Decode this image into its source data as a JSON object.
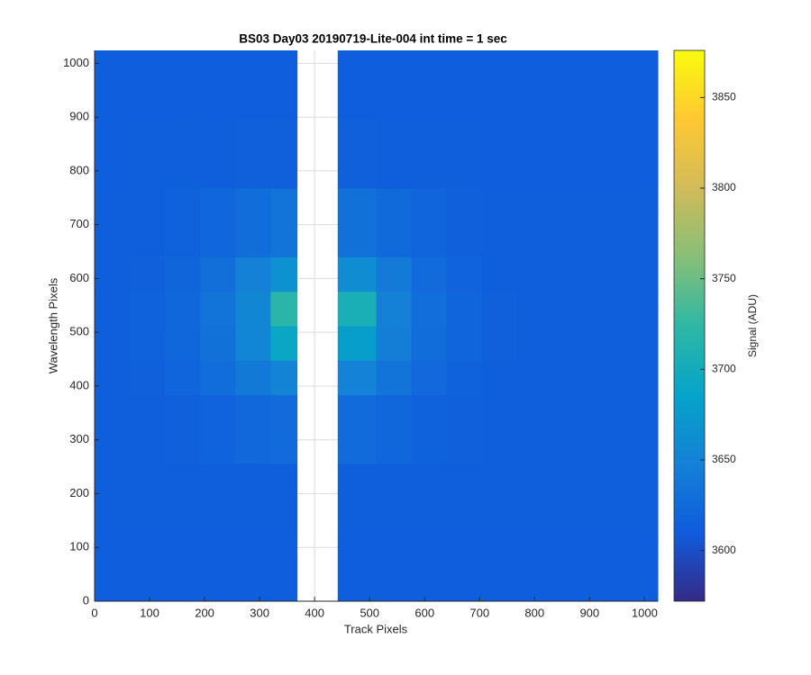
{
  "chart_data": {
    "type": "heatmap",
    "title": "BS03 Day03 20190719-Lite-004 int time = 1 sec",
    "xlabel": "Track Pixels",
    "ylabel": "Wavelength Pixels",
    "x_bins": [
      0,
      64,
      128,
      192,
      256,
      320,
      368,
      442,
      512,
      576,
      640,
      704,
      768,
      832,
      896,
      960,
      1024
    ],
    "y_bins": [
      0,
      128,
      256,
      384,
      448,
      512,
      576,
      640,
      768,
      896,
      1024
    ],
    "values": [
      [
        3612,
        3612,
        3612,
        3612,
        3612,
        3612,
        null,
        3612,
        3612,
        3612,
        3612,
        3612,
        3612,
        3612,
        3612,
        3612
      ],
      [
        3613,
        3613,
        3613,
        3613,
        3613,
        3613,
        null,
        3613,
        3613,
        3613,
        3613,
        3613,
        3613,
        3613,
        3613,
        3613
      ],
      [
        3613,
        3613,
        3614,
        3617,
        3622,
        3625,
        null,
        3625,
        3620,
        3616,
        3614,
        3613,
        3613,
        3613,
        3613,
        3613
      ],
      [
        3613,
        3614,
        3618,
        3627,
        3640,
        3651,
        null,
        3649,
        3635,
        3623,
        3616,
        3613,
        3613,
        3613,
        3613,
        3613
      ],
      [
        3613,
        3615,
        3620,
        3632,
        3652,
        3690,
        null,
        3680,
        3645,
        3627,
        3618,
        3614,
        3613,
        3613,
        3613,
        3613
      ],
      [
        3613,
        3615,
        3621,
        3634,
        3655,
        3720,
        null,
        3705,
        3648,
        3628,
        3618,
        3614,
        3613,
        3613,
        3613,
        3613
      ],
      [
        3613,
        3614,
        3619,
        3630,
        3648,
        3665,
        null,
        3660,
        3642,
        3625,
        3617,
        3613,
        3613,
        3613,
        3613,
        3613
      ],
      [
        3613,
        3613,
        3616,
        3620,
        3627,
        3634,
        null,
        3632,
        3624,
        3618,
        3614,
        3613,
        3613,
        3613,
        3613,
        3613
      ],
      [
        3612,
        3613,
        3613,
        3613,
        3614,
        3614,
        null,
        3614,
        3613,
        3613,
        3613,
        3612,
        3612,
        3612,
        3612,
        3612
      ],
      [
        3612,
        3612,
        3612,
        3612,
        3612,
        3612,
        null,
        3612,
        3612,
        3612,
        3612,
        3612,
        3612,
        3612,
        3612,
        3612
      ]
    ],
    "xlim": [
      0,
      1024
    ],
    "ylim": [
      0,
      1024
    ],
    "xticks": [
      0,
      100,
      200,
      300,
      400,
      500,
      600,
      700,
      800,
      900,
      1000
    ],
    "yticks": [
      0,
      100,
      200,
      300,
      400,
      500,
      600,
      700,
      800,
      900,
      1000
    ],
    "grid": true,
    "colormap": "parula",
    "colorbar": {
      "label": "Signal (ADU)",
      "clim": [
        3572,
        3876
      ],
      "ticks": [
        3600,
        3650,
        3700,
        3750,
        3800,
        3850
      ]
    }
  }
}
